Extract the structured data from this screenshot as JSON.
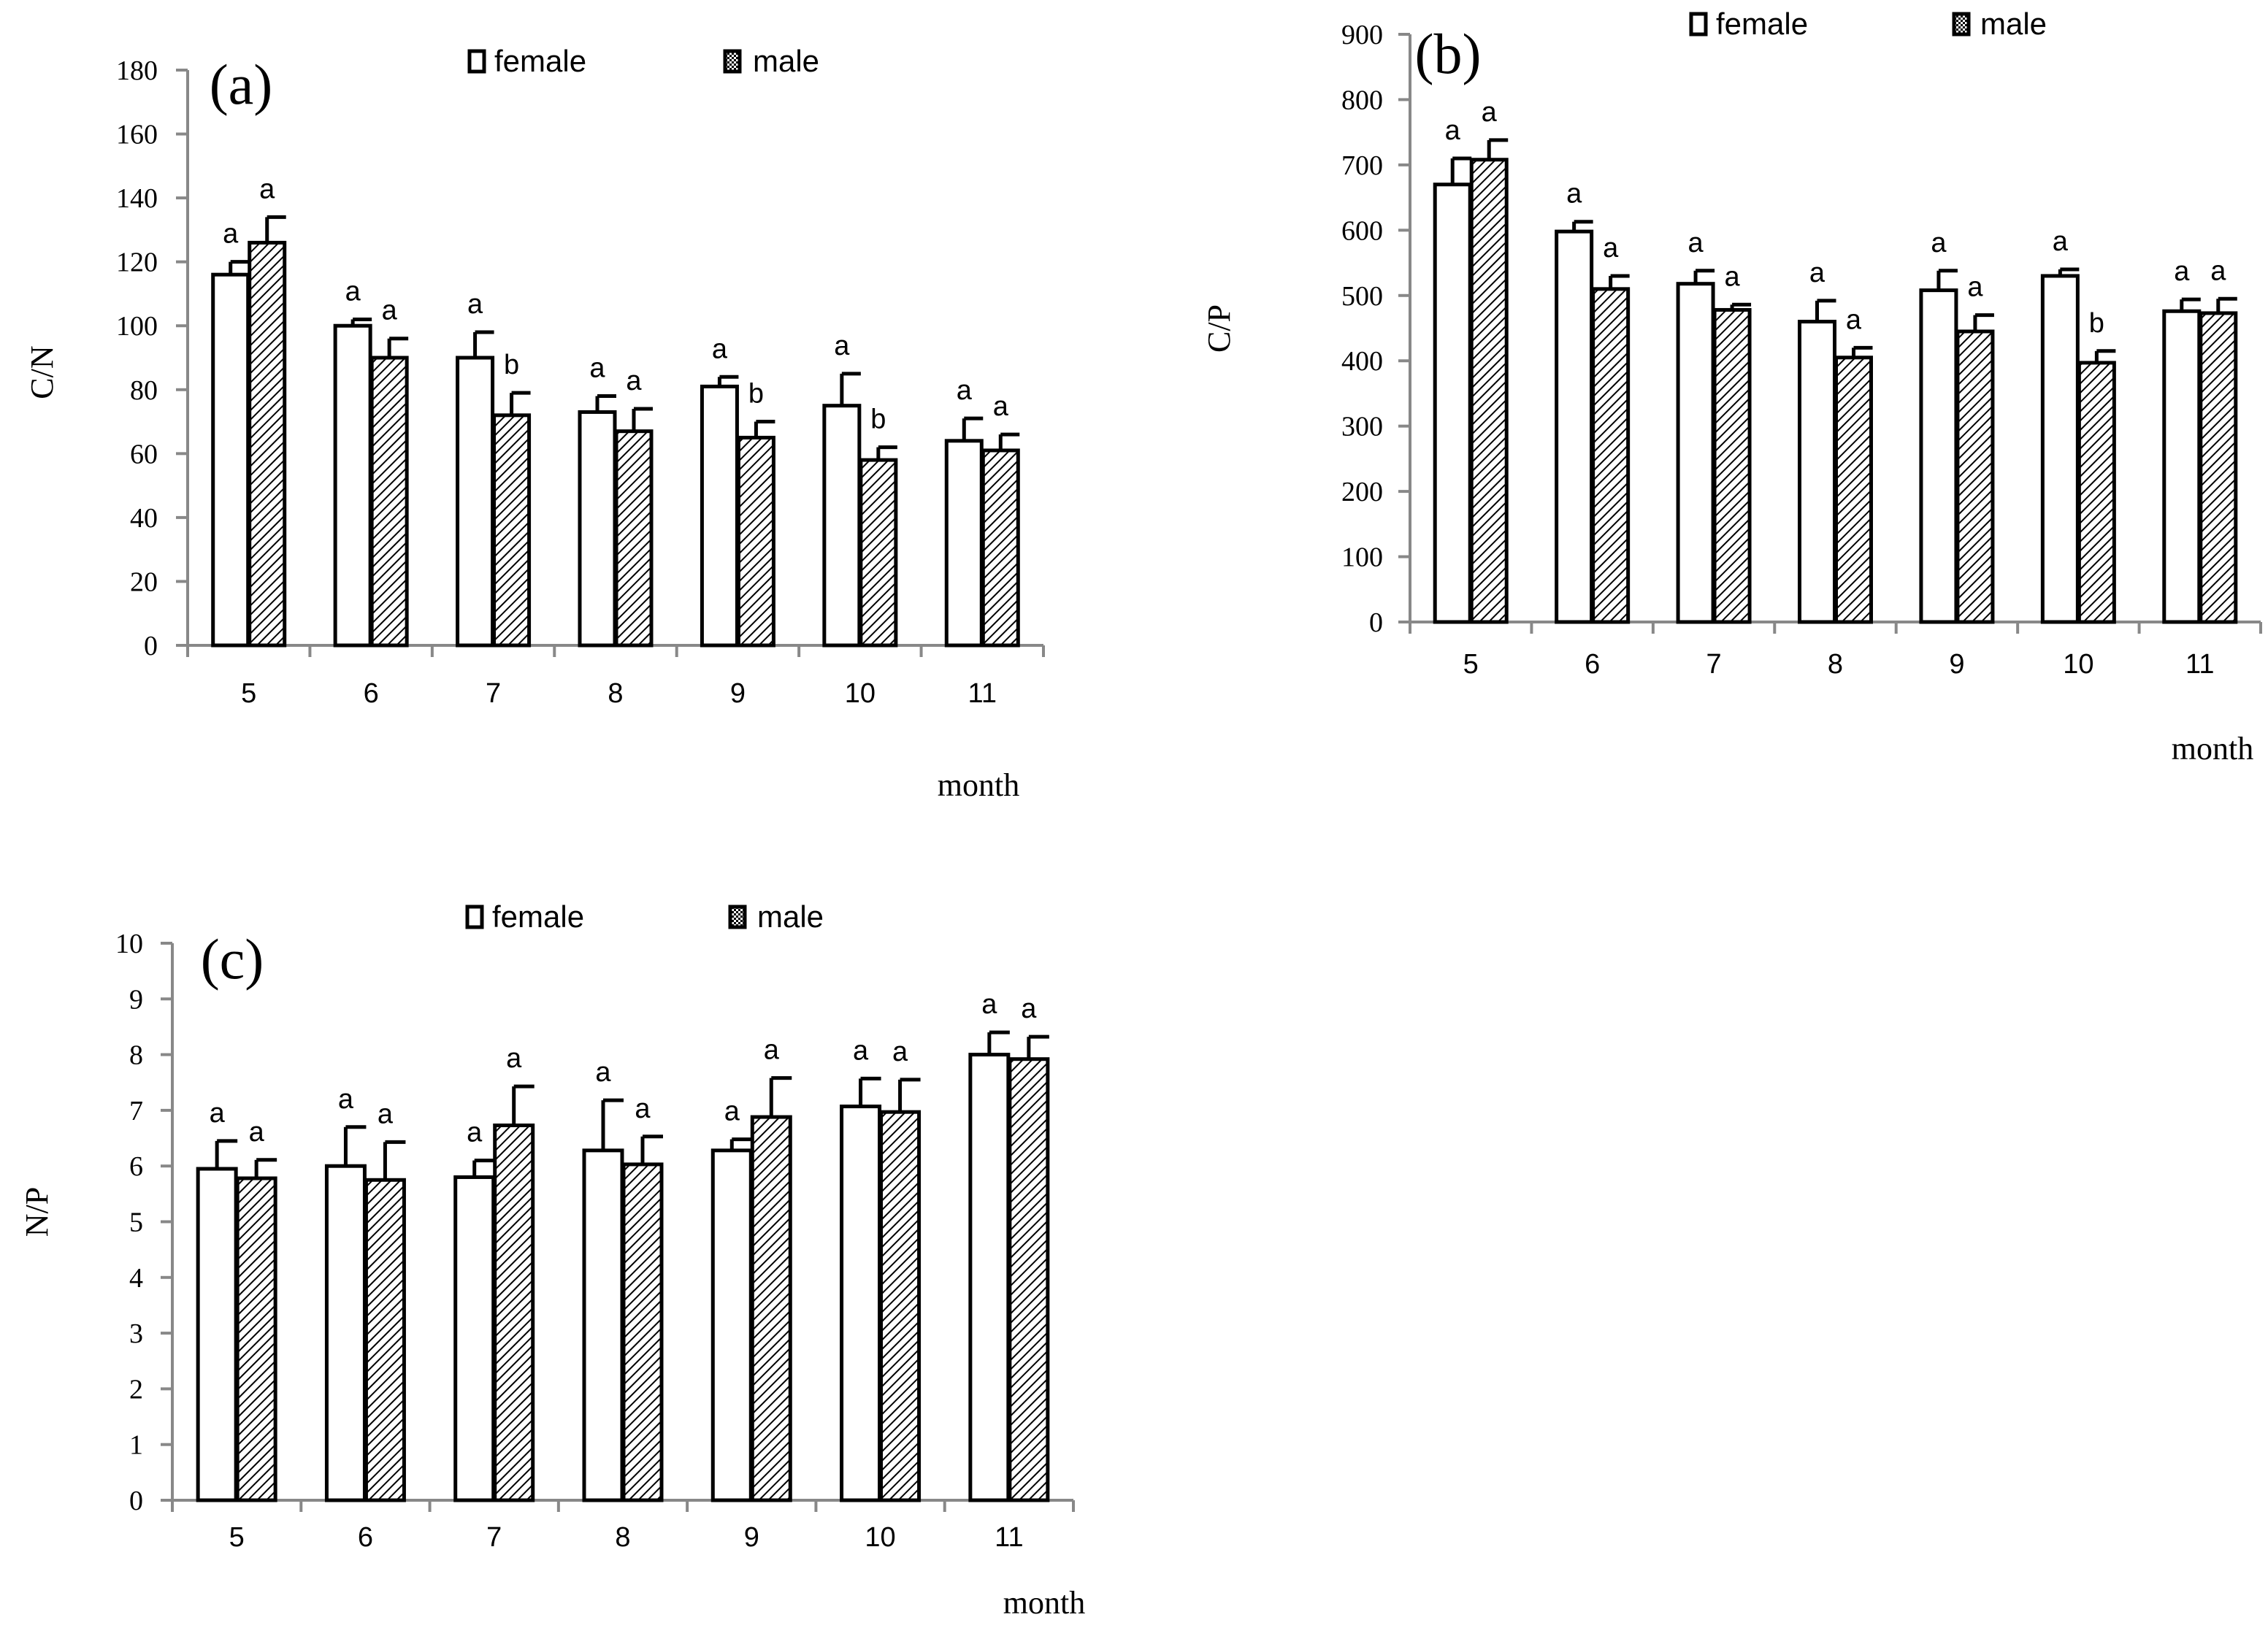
{
  "chart_data": [
    {
      "type": "bar",
      "panel_label": "(a)",
      "categories": [
        "5",
        "6",
        "7",
        "8",
        "9",
        "10",
        "11"
      ],
      "xlabel": "month",
      "ylabel": "C/N",
      "ylim": [
        0,
        180
      ],
      "yticks": [
        "0",
        "20",
        "40",
        "60",
        "80",
        "100",
        "120",
        "140",
        "160",
        "180"
      ],
      "series": [
        {
          "name": "female",
          "values": [
            116,
            100,
            90,
            73,
            81,
            75,
            64
          ],
          "errors": [
            4,
            2,
            8,
            5,
            3,
            10,
            7
          ],
          "sig": [
            "a",
            "a",
            "a",
            "a",
            "a",
            "a",
            "a"
          ]
        },
        {
          "name": "male",
          "values": [
            126,
            90,
            72,
            67,
            65,
            58,
            61
          ],
          "errors": [
            8,
            6,
            7,
            7,
            5,
            4,
            5
          ],
          "sig": [
            "a",
            "a",
            "b",
            "a",
            "b",
            "b",
            "a"
          ]
        }
      ],
      "legend": "top-center"
    },
    {
      "type": "bar",
      "panel_label": "(b)",
      "categories": [
        "5",
        "6",
        "7",
        "8",
        "9",
        "10",
        "11"
      ],
      "xlabel": "month",
      "ylabel": "C/P",
      "ylim": [
        0,
        900
      ],
      "yticks": [
        "0",
        "100",
        "200",
        "300",
        "400",
        "500",
        "600",
        "700",
        "800",
        "900"
      ],
      "series": [
        {
          "name": "female",
          "values": [
            670,
            598,
            518,
            460,
            508,
            530,
            476
          ],
          "errors": [
            40,
            15,
            20,
            32,
            30,
            10,
            18
          ],
          "sig": [
            "a",
            "a",
            "a",
            "a",
            "a",
            "a",
            "a"
          ]
        },
        {
          "name": "male",
          "values": [
            708,
            510,
            478,
            405,
            445,
            397,
            473
          ],
          "errors": [
            30,
            20,
            8,
            15,
            25,
            18,
            22
          ],
          "sig": [
            "a",
            "a",
            "a",
            "a",
            "a",
            "b",
            "a"
          ]
        }
      ],
      "legend": "top-center"
    },
    {
      "type": "bar",
      "panel_label": "(c)",
      "categories": [
        "5",
        "6",
        "7",
        "8",
        "9",
        "10",
        "11"
      ],
      "xlabel": "month",
      "ylabel": "N/P",
      "ylim": [
        0,
        10
      ],
      "yticks": [
        "0",
        "1",
        "2",
        "3",
        "4",
        "5",
        "6",
        "7",
        "8",
        "9",
        "10"
      ],
      "series": [
        {
          "name": "female",
          "values": [
            5.95,
            6.0,
            5.8,
            6.28,
            6.28,
            7.07,
            8.0
          ],
          "errors": [
            0.5,
            0.7,
            0.3,
            0.9,
            0.2,
            0.5,
            0.4
          ],
          "sig": [
            "a",
            "a",
            "a",
            "a",
            "a",
            "a",
            "a"
          ]
        },
        {
          "name": "male",
          "values": [
            5.78,
            5.75,
            6.73,
            6.03,
            6.88,
            6.97,
            7.92
          ],
          "errors": [
            0.33,
            0.68,
            0.7,
            0.5,
            0.7,
            0.58,
            0.4
          ],
          "sig": [
            "a",
            "a",
            "a",
            "a",
            "a",
            "a",
            "a"
          ]
        }
      ],
      "legend": "top-center"
    }
  ]
}
